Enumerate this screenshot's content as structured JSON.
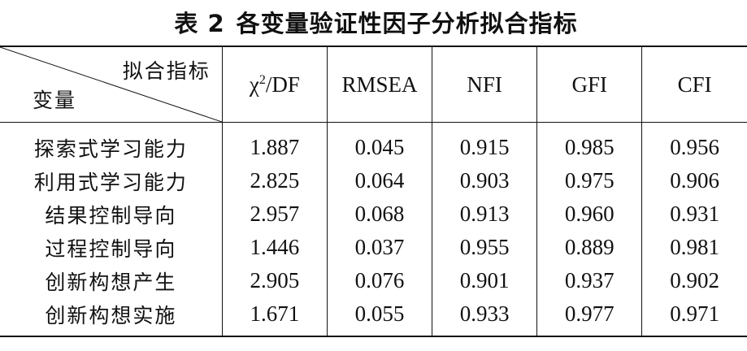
{
  "title": {
    "label": "表 2",
    "text": "各变量验证性因子分析拟合指标"
  },
  "header": {
    "corner_top": "拟合指标",
    "corner_bottom": "变量",
    "chi_base": "χ",
    "chi_sup": "2",
    "chi_rest": "/DF",
    "columns": [
      "RMSEA",
      "NFI",
      "GFI",
      "CFI"
    ]
  },
  "rows": [
    {
      "label": "探索式学习能力",
      "values": [
        "1.887",
        "0.045",
        "0.915",
        "0.985",
        "0.956"
      ]
    },
    {
      "label": "利用式学习能力",
      "values": [
        "2.825",
        "0.064",
        "0.903",
        "0.975",
        "0.906"
      ]
    },
    {
      "label": "结果控制导向",
      "values": [
        "2.957",
        "0.068",
        "0.913",
        "0.960",
        "0.931"
      ]
    },
    {
      "label": "过程控制导向",
      "values": [
        "1.446",
        "0.037",
        "0.955",
        "0.889",
        "0.981"
      ]
    },
    {
      "label": "创新构想产生",
      "values": [
        "2.905",
        "0.076",
        "0.901",
        "0.937",
        "0.902"
      ]
    },
    {
      "label": "创新构想实施",
      "values": [
        "1.671",
        "0.055",
        "0.933",
        "0.977",
        "0.971"
      ]
    }
  ]
}
